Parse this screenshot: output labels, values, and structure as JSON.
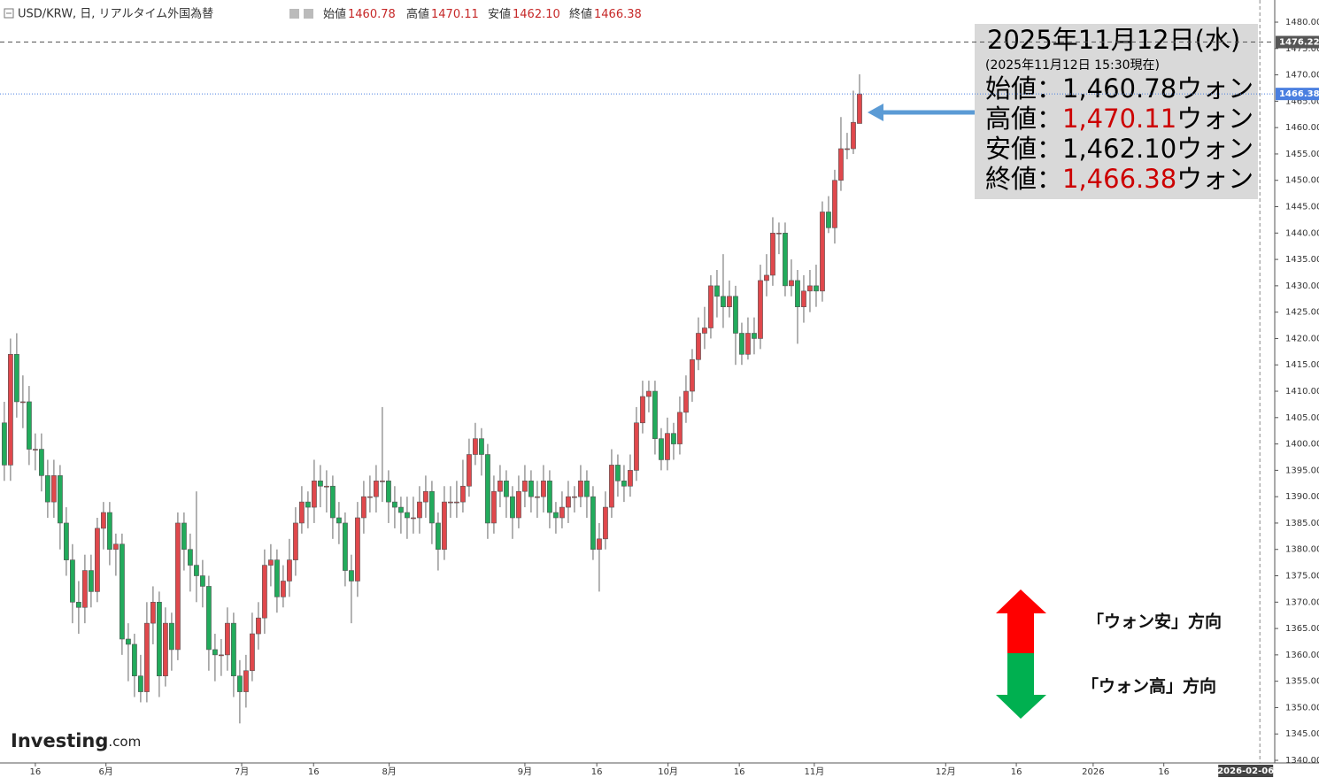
{
  "chart_data": {
    "type": "candlestick",
    "header": {
      "title": "USD/KRW, 日, リアルタイム外国為替",
      "ohlc": [
        {
          "label": "始値",
          "value": "1460.78"
        },
        {
          "label": "高値",
          "value": "1470.11"
        },
        {
          "label": "安値",
          "value": "1462.10"
        },
        {
          "label": "終値",
          "value": "1466.38"
        }
      ]
    },
    "up_color": "#e0484c",
    "down_color": "#22ab5c",
    "candles": {
      "open": [
        1404,
        1396,
        1417,
        1408,
        1408,
        1399,
        1399,
        1394,
        1389,
        1394,
        1385,
        1378,
        1370,
        1369,
        1376,
        1372,
        1384,
        1387,
        1380,
        1381,
        1363,
        1362,
        1356,
        1353,
        1366,
        1370,
        1356,
        1366,
        1361,
        1385,
        1380,
        1377,
        1375,
        1373,
        1361,
        1360,
        1360,
        1366,
        1356,
        1353,
        1357,
        1364,
        1367,
        1377,
        1378,
        1371,
        1374,
        1378,
        1385,
        1389,
        1388,
        1393,
        1392,
        1392,
        1386,
        1385,
        1376,
        1374,
        1386,
        1390,
        1390,
        1393,
        1393,
        1389,
        1388,
        1387,
        1386,
        1386,
        1389,
        1391,
        1385,
        1380,
        1389,
        1389,
        1389,
        1392,
        1398,
        1401,
        1398,
        1385,
        1391,
        1393,
        1390,
        1386,
        1391,
        1393,
        1390,
        1390,
        1393,
        1387,
        1386,
        1388,
        1390,
        1390,
        1393,
        1390,
        1380,
        1382,
        1388,
        1396,
        1393,
        1392,
        1395,
        1404,
        1409,
        1410,
        1401,
        1397,
        1402,
        1400,
        1406,
        1410,
        1416,
        1421,
        1422,
        1430,
        1428,
        1426,
        1428,
        1421,
        1417,
        1421,
        1420,
        1431,
        1432,
        1440,
        1440,
        1430,
        1431,
        1426,
        1429,
        1430,
        1429,
        1444,
        1441,
        1450,
        1456,
        1456,
        1460.78
      ],
      "high": [
        1408,
        1420,
        1421,
        1413,
        1411,
        1402,
        1402,
        1397,
        1397,
        1396,
        1388,
        1381,
        1374,
        1379,
        1379,
        1386,
        1389,
        1389,
        1383,
        1383,
        1366,
        1364,
        1360,
        1370,
        1373,
        1372,
        1369,
        1368,
        1387,
        1387,
        1383,
        1391,
        1378,
        1375,
        1364,
        1363,
        1369,
        1368,
        1359,
        1360,
        1368,
        1370,
        1380,
        1381,
        1380,
        1377,
        1382,
        1388,
        1392,
        1391,
        1397,
        1396,
        1395,
        1394,
        1389,
        1387,
        1379,
        1389,
        1393,
        1394,
        1396,
        1407,
        1395,
        1392,
        1390,
        1390,
        1390,
        1392,
        1394,
        1393,
        1387,
        1392,
        1392,
        1393,
        1397,
        1401,
        1404,
        1403,
        1400,
        1394,
        1396,
        1395,
        1392,
        1394,
        1396,
        1395,
        1393,
        1396,
        1395,
        1389,
        1391,
        1393,
        1392,
        1396,
        1395,
        1392,
        1385,
        1391,
        1399,
        1398,
        1396,
        1398,
        1407,
        1412,
        1412,
        1412,
        1403,
        1405,
        1404,
        1409,
        1413,
        1418,
        1424,
        1426,
        1432,
        1433,
        1436,
        1431,
        1430,
        1423,
        1424,
        1424,
        1434,
        1436,
        1443,
        1442,
        1442,
        1435,
        1433,
        1432,
        1433,
        1434,
        1446,
        1447,
        1452,
        1462,
        1459,
        1467,
        1470.11
      ],
      "low": [
        1393,
        1393,
        1405,
        1403,
        1396,
        1395,
        1391,
        1386,
        1386,
        1380,
        1375,
        1366,
        1364,
        1366,
        1369,
        1370,
        1380,
        1377,
        1375,
        1360,
        1355,
        1352,
        1351,
        1351,
        1362,
        1352,
        1354,
        1357,
        1359,
        1376,
        1372,
        1370,
        1369,
        1357,
        1355,
        1356,
        1357,
        1352,
        1347,
        1350,
        1355,
        1361,
        1364,
        1373,
        1368,
        1369,
        1371,
        1375,
        1383,
        1384,
        1385,
        1388,
        1387,
        1382,
        1381,
        1373,
        1366,
        1371,
        1383,
        1387,
        1387,
        1389,
        1385,
        1384,
        1383,
        1382,
        1383,
        1383,
        1386,
        1381,
        1376,
        1378,
        1386,
        1386,
        1387,
        1390,
        1396,
        1394,
        1382,
        1383,
        1388,
        1386,
        1382,
        1384,
        1388,
        1387,
        1386,
        1387,
        1384,
        1383,
        1384,
        1385,
        1387,
        1388,
        1386,
        1378,
        1372,
        1380,
        1386,
        1390,
        1389,
        1390,
        1393,
        1402,
        1406,
        1398,
        1395,
        1395,
        1397,
        1398,
        1404,
        1408,
        1414,
        1418,
        1420,
        1424,
        1422,
        1424,
        1415,
        1415,
        1416,
        1417,
        1418,
        1428,
        1430,
        1436,
        1428,
        1428,
        1419,
        1423,
        1425,
        1426,
        1427,
        1440,
        1438,
        1448,
        1454,
        1455,
        1462.1
      ],
      "close": [
        1396,
        1417,
        1408,
        1408,
        1399,
        1399,
        1394,
        1389,
        1394,
        1385,
        1378,
        1370,
        1369,
        1376,
        1372,
        1384,
        1387,
        1380,
        1381,
        1363,
        1362,
        1356,
        1353,
        1366,
        1370,
        1356,
        1366,
        1361,
        1385,
        1380,
        1377,
        1375,
        1373,
        1361,
        1360,
        1360,
        1366,
        1356,
        1353,
        1357,
        1364,
        1367,
        1377,
        1378,
        1371,
        1374,
        1378,
        1385,
        1389,
        1388,
        1393,
        1392,
        1392,
        1386,
        1385,
        1376,
        1374,
        1386,
        1390,
        1390,
        1393,
        1393,
        1389,
        1388,
        1387,
        1386,
        1386,
        1389,
        1391,
        1385,
        1380,
        1389,
        1389,
        1389,
        1392,
        1398,
        1401,
        1398,
        1385,
        1391,
        1393,
        1390,
        1386,
        1391,
        1393,
        1390,
        1390,
        1393,
        1387,
        1386,
        1388,
        1390,
        1390,
        1393,
        1390,
        1380,
        1382,
        1388,
        1396,
        1393,
        1392,
        1395,
        1404,
        1409,
        1410,
        1401,
        1397,
        1402,
        1400,
        1406,
        1410,
        1416,
        1421,
        1422,
        1430,
        1428,
        1426,
        1428,
        1421,
        1417,
        1421,
        1420,
        1431,
        1432,
        1440,
        1440,
        1430,
        1431,
        1426,
        1429,
        1430,
        1429,
        1444,
        1441,
        1450,
        1456,
        1456,
        1461,
        1466.38
      ]
    },
    "xlim": [
      -0.7,
      205
    ],
    "xticks": [
      {
        "value": 5,
        "label": "16"
      },
      {
        "value": 16.4,
        "label": "6月"
      },
      {
        "value": 38.3,
        "label": "7月"
      },
      {
        "value": 49.9,
        "label": "16"
      },
      {
        "value": 62.1,
        "label": "8月"
      },
      {
        "value": 84,
        "label": "9月"
      },
      {
        "value": 95.6,
        "label": "16"
      },
      {
        "value": 107.1,
        "label": "10月"
      },
      {
        "value": 118.6,
        "label": "16"
      },
      {
        "value": 130.7,
        "label": "11月"
      },
      {
        "value": 151.9,
        "label": "12月"
      },
      {
        "value": 163.3,
        "label": "16"
      },
      {
        "value": 175.7,
        "label": "2026"
      },
      {
        "value": 187.1,
        "label": "16"
      }
    ],
    "ylim": [
      1339.5,
      1484.2
    ],
    "yticks": [
      {
        "value": 1340,
        "label": "1340.00"
      },
      {
        "value": 1345,
        "label": "1345.00"
      },
      {
        "value": 1350,
        "label": "1350.00"
      },
      {
        "value": 1355,
        "label": "1355.00"
      },
      {
        "value": 1360,
        "label": "1360.00"
      },
      {
        "value": 1365,
        "label": "1365.00"
      },
      {
        "value": 1370,
        "label": "1370.00"
      },
      {
        "value": 1375,
        "label": "1375.00"
      },
      {
        "value": 1380,
        "label": "1380.00"
      },
      {
        "value": 1385,
        "label": "1385.00"
      },
      {
        "value": 1390,
        "label": "1390.00"
      },
      {
        "value": 1395,
        "label": "1395.00"
      },
      {
        "value": 1400,
        "label": "1400.00"
      },
      {
        "value": 1405,
        "label": "1405.00"
      },
      {
        "value": 1410,
        "label": "1410.00"
      },
      {
        "value": 1415,
        "label": "1415.00"
      },
      {
        "value": 1420,
        "label": "1420.00"
      },
      {
        "value": 1425,
        "label": "1425.00"
      },
      {
        "value": 1430,
        "label": "1430.00"
      },
      {
        "value": 1435,
        "label": "1435.00"
      },
      {
        "value": 1440,
        "label": "1440.00"
      },
      {
        "value": 1445,
        "label": "1445.00"
      },
      {
        "value": 1450,
        "label": "1450.00"
      },
      {
        "value": 1455,
        "label": "1455.00"
      },
      {
        "value": 1460,
        "label": "1460.00"
      },
      {
        "value": 1465,
        "label": "1465.00"
      },
      {
        "value": 1470,
        "label": "1470.00"
      },
      {
        "value": 1475,
        "label": "1475.00"
      },
      {
        "value": 1480,
        "label": "1480.00"
      }
    ],
    "price_lines": [
      {
        "value": 1476.22,
        "label": "1476.22",
        "color": "#555555"
      },
      {
        "value": 1466.38,
        "label": "1466.38",
        "color": "#4a7fe0"
      }
    ],
    "crosshair": {
      "x": 202.6,
      "label": "2026-02-06"
    },
    "info_box": {
      "date": "2025年11月12日(水)",
      "note": "(2025年11月12日 15:30現在)",
      "rows": [
        {
          "label": "始値：",
          "value": "1,460.78",
          "unit": "ウォン",
          "color": "#000000"
        },
        {
          "label": "高値：",
          "value": "1,470.11",
          "unit": "ウォン",
          "color": "#cc0000"
        },
        {
          "label": "安値：",
          "value": "1,462.10",
          "unit": "ウォン",
          "color": "#000000"
        },
        {
          "label": "終値：",
          "value": "1,466.38",
          "unit": "ウォン",
          "color": "#cc0000"
        }
      ]
    },
    "direction_legend": {
      "up": "「ウォン安」方向",
      "down": "「ウォン高」方向"
    },
    "logo": {
      "main": "Investing",
      "suffix": ".com"
    }
  }
}
